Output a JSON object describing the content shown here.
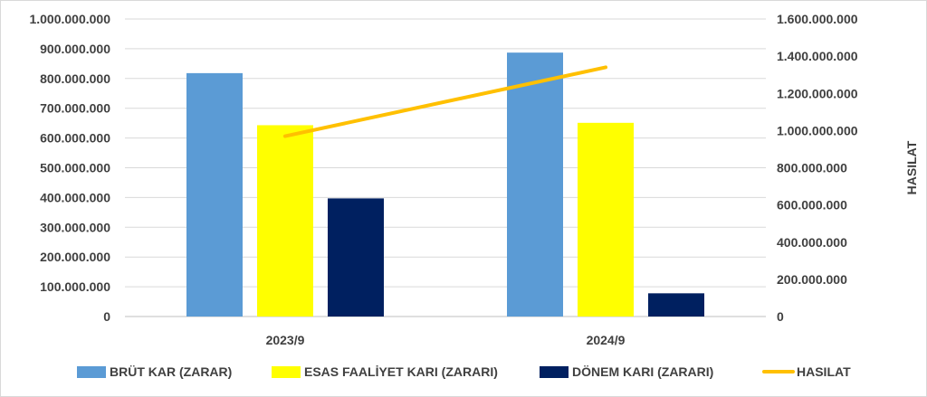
{
  "chart_data": {
    "type": "bar",
    "categories": [
      "2023/9",
      "2024/9"
    ],
    "series": [
      {
        "name": "BRÜT KAR (ZARAR)",
        "type": "bar",
        "axis": "left",
        "color": "#5b9bd5",
        "values": [
          818000000,
          887000000
        ]
      },
      {
        "name": "ESAS FAALİYET KARI (ZARARI)",
        "type": "bar",
        "axis": "left",
        "color": "#ffff00",
        "values": [
          643000000,
          651000000
        ]
      },
      {
        "name": "DÖNEM KARI (ZARARI)",
        "type": "bar",
        "axis": "left",
        "color": "#002060",
        "values": [
          397000000,
          78000000
        ]
      },
      {
        "name": "HASILAT",
        "type": "line",
        "axis": "right",
        "color": "#ffc000",
        "values": [
          970000000,
          1340000000
        ]
      }
    ],
    "left_axis": {
      "min": 0,
      "max": 1000000000,
      "step": 100000000,
      "tick_labels": [
        "0",
        "100.000.000",
        "200.000.000",
        "300.000.000",
        "400.000.000",
        "500.000.000",
        "600.000.000",
        "700.000.000",
        "800.000.000",
        "900.000.000",
        "1.000.000.000"
      ]
    },
    "right_axis": {
      "min": 0,
      "max": 1600000000,
      "step": 200000000,
      "title": "HASILAT",
      "tick_labels": [
        "0",
        "200.000.000",
        "400.000.000",
        "600.000.000",
        "800.000.000",
        "1.000.000.000",
        "1.200.000.000",
        "1.400.000.000",
        "1.600.000.000"
      ]
    },
    "grid": true,
    "legend_position": "bottom"
  }
}
